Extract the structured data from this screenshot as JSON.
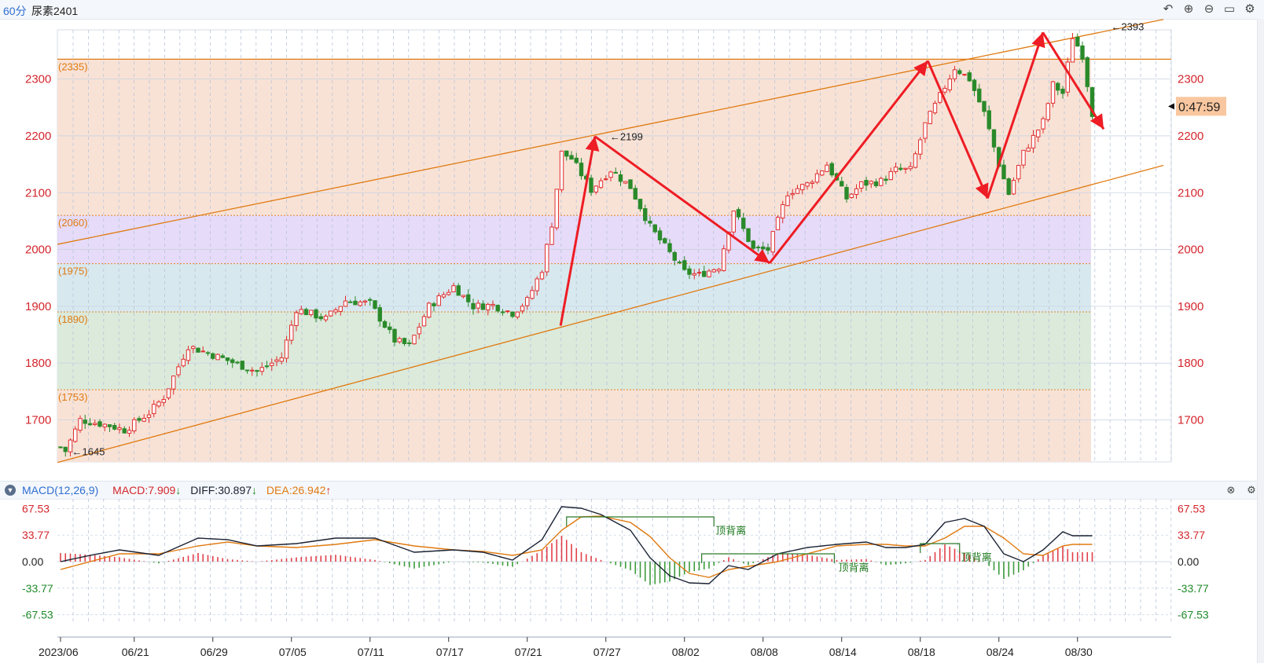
{
  "header": {
    "period": "60分",
    "symbol": "尿素2401",
    "icons": [
      "undo-icon",
      "zoom-in-icon",
      "zoom-out-icon",
      "window-icon",
      "settings-icon"
    ]
  },
  "main_chart": {
    "price_range": [
      1626,
      2406
    ],
    "y_ticks": [
      1700,
      1800,
      1900,
      2000,
      2100,
      2200,
      2300
    ],
    "countdown": "0:47:59",
    "zones": [
      {
        "from": 2060,
        "to": 2335,
        "color": "#f8e2d6"
      },
      {
        "from": 1975,
        "to": 2060,
        "color": "#e6dbf8"
      },
      {
        "from": 1890,
        "to": 1975,
        "color": "#d8e8ef"
      },
      {
        "from": 1753,
        "to": 1890,
        "color": "#dbeadb"
      },
      {
        "from": 1626,
        "to": 1753,
        "color": "#f8e2d6"
      }
    ],
    "levels": [
      {
        "label": "(2335)",
        "value": 2335
      },
      {
        "label": "(2060)",
        "value": 2060
      },
      {
        "label": "(1975)",
        "value": 1975
      },
      {
        "label": "(1890)",
        "value": 1890
      },
      {
        "label": "(1753)",
        "value": 1753
      }
    ],
    "price_notes": [
      {
        "text": "←1645",
        "value": 1645
      },
      {
        "text": "←2199",
        "value": 2199
      },
      {
        "text": "←2393",
        "value": 2393
      }
    ],
    "trend_lines": [
      {
        "from": [
          0,
          2009
        ],
        "to": [
          100,
          2405
        ]
      },
      {
        "from": [
          0,
          1625
        ],
        "to": [
          100,
          2148
        ]
      }
    ],
    "arrows": [
      {
        "from": [
          45.5,
          1866
        ],
        "to": [
          48.6,
          2199
        ]
      },
      {
        "from": [
          48.6,
          2199
        ],
        "to": [
          64.4,
          1976
        ]
      },
      {
        "from": [
          64.4,
          1976
        ],
        "to": [
          78.7,
          2332
        ]
      },
      {
        "from": [
          78.7,
          2332
        ],
        "to": [
          84.1,
          2090
        ]
      },
      {
        "from": [
          84.1,
          2090
        ],
        "to": [
          89.1,
          2382
        ]
      },
      {
        "from": [
          89.1,
          2382
        ],
        "to": [
          94.6,
          2212
        ]
      }
    ]
  },
  "chart_data": {
    "type": "candlestick",
    "x_ticks": [
      "2023/06",
      "06/21",
      "06/29",
      "07/05",
      "07/11",
      "07/17",
      "07/21",
      "07/27",
      "08/02",
      "08/08",
      "08/14",
      "08/18",
      "08/24",
      "08/30"
    ],
    "anchors": [
      [
        0,
        1652
      ],
      [
        1,
        1645
      ],
      [
        4,
        1700
      ],
      [
        10,
        1690
      ],
      [
        13,
        1682
      ],
      [
        18,
        1712
      ],
      [
        21,
        1740
      ],
      [
        26,
        1830
      ],
      [
        33,
        1808
      ],
      [
        40,
        1785
      ],
      [
        45,
        1810
      ],
      [
        48,
        1895
      ],
      [
        54,
        1878
      ],
      [
        58,
        1910
      ],
      [
        63,
        1905
      ],
      [
        68,
        1840
      ],
      [
        71,
        1830
      ],
      [
        75,
        1900
      ],
      [
        80,
        1935
      ],
      [
        84,
        1900
      ],
      [
        88,
        1902
      ],
      [
        92,
        1888
      ],
      [
        95,
        1910
      ],
      [
        98,
        1965
      ],
      [
        100,
        2045
      ],
      [
        102,
        2170
      ],
      [
        104,
        2160
      ],
      [
        108,
        2105
      ],
      [
        112,
        2140
      ],
      [
        116,
        2110
      ],
      [
        120,
        2040
      ],
      [
        123,
        2005
      ],
      [
        127,
        1960
      ],
      [
        130,
        1955
      ],
      [
        134,
        1970
      ],
      [
        137,
        2070
      ],
      [
        141,
        2000
      ],
      [
        144,
        2000
      ],
      [
        148,
        2100
      ],
      [
        152,
        2115
      ],
      [
        156,
        2150
      ],
      [
        160,
        2090
      ],
      [
        163,
        2115
      ],
      [
        167,
        2120
      ],
      [
        170,
        2140
      ],
      [
        173,
        2140
      ],
      [
        176,
        2220
      ],
      [
        179,
        2270
      ],
      [
        182,
        2320
      ],
      [
        185,
        2300
      ],
      [
        188,
        2240
      ],
      [
        191,
        2150
      ],
      [
        193,
        2098
      ],
      [
        196,
        2170
      ],
      [
        200,
        2225
      ],
      [
        202,
        2290
      ],
      [
        204,
        2275
      ],
      [
        206,
        2375
      ],
      [
        208,
        2342
      ],
      [
        210,
        2240
      ]
    ],
    "y_axis": [
      1700,
      1800,
      1900,
      2000,
      2100,
      2200,
      2300
    ]
  },
  "macd": {
    "label": "MACD(12,26,9)",
    "macd_text": "MACD:7.909",
    "diff_text": "DIFF:30.897",
    "dea_text": "DEA:26.942",
    "diff_arrow": "↓",
    "macd_arrow": "↓",
    "dea_arrow": "↑",
    "y_ticks": [
      "67.53",
      "33.77",
      "0.00",
      "-33.77",
      "-67.53"
    ],
    "y_values": [
      67.53,
      33.77,
      0,
      -33.77,
      -67.53
    ],
    "range": [
      -80,
      80
    ],
    "divergence_label": "顶背离",
    "diff_anchors": [
      [
        0,
        0
      ],
      [
        6,
        8
      ],
      [
        12,
        15
      ],
      [
        20,
        8
      ],
      [
        28,
        30
      ],
      [
        34,
        28
      ],
      [
        40,
        20
      ],
      [
        48,
        23
      ],
      [
        56,
        30
      ],
      [
        64,
        30
      ],
      [
        72,
        12
      ],
      [
        80,
        15
      ],
      [
        86,
        12
      ],
      [
        92,
        2
      ],
      [
        98,
        28
      ],
      [
        102,
        70
      ],
      [
        106,
        68
      ],
      [
        110,
        60
      ],
      [
        116,
        40
      ],
      [
        120,
        5
      ],
      [
        124,
        -18
      ],
      [
        128,
        -27
      ],
      [
        132,
        -28
      ],
      [
        136,
        -5
      ],
      [
        140,
        -10
      ],
      [
        146,
        10
      ],
      [
        152,
        18
      ],
      [
        158,
        22
      ],
      [
        164,
        25
      ],
      [
        168,
        18
      ],
      [
        172,
        18
      ],
      [
        176,
        22
      ],
      [
        180,
        50
      ],
      [
        184,
        55
      ],
      [
        188,
        45
      ],
      [
        192,
        10
      ],
      [
        196,
        0
      ],
      [
        200,
        15
      ],
      [
        204,
        38
      ],
      [
        206,
        33
      ]
    ],
    "dea_anchors": [
      [
        0,
        -10
      ],
      [
        6,
        0
      ],
      [
        12,
        10
      ],
      [
        20,
        10
      ],
      [
        28,
        20
      ],
      [
        34,
        25
      ],
      [
        40,
        20
      ],
      [
        48,
        18
      ],
      [
        56,
        22
      ],
      [
        64,
        28
      ],
      [
        72,
        20
      ],
      [
        80,
        15
      ],
      [
        86,
        13
      ],
      [
        92,
        8
      ],
      [
        98,
        15
      ],
      [
        102,
        40
      ],
      [
        106,
        57
      ],
      [
        110,
        58
      ],
      [
        116,
        50
      ],
      [
        120,
        32
      ],
      [
        124,
        5
      ],
      [
        128,
        -15
      ],
      [
        132,
        -20
      ],
      [
        136,
        -10
      ],
      [
        140,
        -6
      ],
      [
        146,
        0
      ],
      [
        152,
        10
      ],
      [
        158,
        20
      ],
      [
        164,
        22
      ],
      [
        168,
        22
      ],
      [
        172,
        20
      ],
      [
        176,
        20
      ],
      [
        180,
        30
      ],
      [
        184,
        45
      ],
      [
        188,
        45
      ],
      [
        192,
        30
      ],
      [
        196,
        10
      ],
      [
        200,
        8
      ],
      [
        204,
        20
      ],
      [
        206,
        22
      ]
    ],
    "divergence_boxes": [
      {
        "from": 130.5,
        "to": 157.5,
        "top": 10,
        "label_pos": 158
      },
      {
        "from": 103,
        "to": 133,
        "top": 57,
        "label_pos": 133
      },
      {
        "from": 175,
        "to": 183,
        "top": 23,
        "label_pos": 183
      }
    ]
  }
}
